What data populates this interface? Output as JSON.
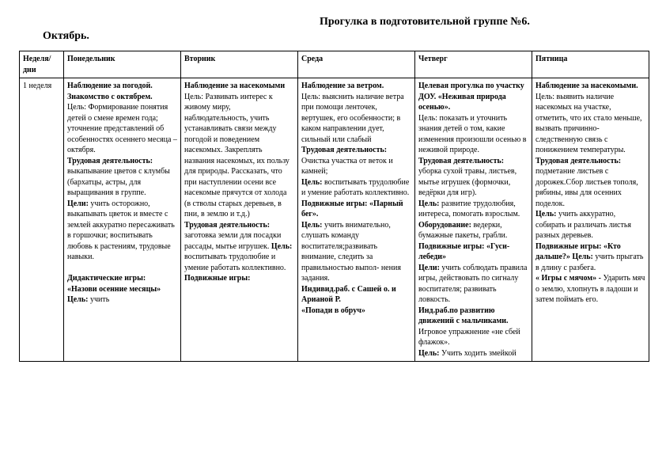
{
  "header": {
    "title": "Прогулка в подготовительной группе №6.",
    "month": "Октябрь."
  },
  "table": {
    "columns": [
      "Неделя/\nдни",
      "Понедельник",
      "Вторник",
      "Среда",
      "Четверг",
      "Пятница"
    ],
    "week_label": "1 неделя",
    "cells": {
      "mon": {
        "b1": "Наблюдение за погодой.  Знакомство с октябрем.",
        "p1": "Цель: Формирование понятия детей о смене времен года; уточнение представлений об особенностях осеннего месяца – октября.",
        "b2": "Трудовая деятельность:",
        "p2": "выкапывание цветов с клумбы (бархатцы, астры, для выращивания в группе.",
        "b3": "Цели:",
        "p3": " учить осторожно, выкапывать цветок и вместе с землей аккуратно пересаживать в горшочки;  воспитывать любовь к растениям, трудовые навыки.",
        "b4": "Дидактические игры: «Назови осенние месяцы» Цель: ",
        "p4": " учить"
      },
      "tue": {
        "b1": " Наблюдение за насекомыми",
        "p1": "Цель: Развивать интерес к живому миру, наблюдательность, учить устанавливать связи между погодой и поведением насекомых. Закреплять названия насекомых, их пользу для природы. Рассказать, что при наступлении осени все насекомые прячутся от холода (в стволы старых деревьев, в пни, в землю и т.д.)",
        "b2": "Трудовая деятельность: ",
        "p2": "заготовка земли для посадки рассады, мытье игрушек. ",
        "b3": "Цель: ",
        "p3": "воспитывать трудолюбие и умение работать коллективно.",
        "b4": "Подвижные игры:",
        "p4": ""
      },
      "wed": {
        "b1": "Наблюдение за ветром.",
        "p1": "Цель: выяснить наличие ветра при помощи ленточек, вертушек, его особенности; в каком направлении дует, сильный или слабый",
        "b2": "Трудовая деятельность:",
        "p2": "Очистка участка от веток и камней;",
        "b3": "Цель:",
        "p3": " воспитывать трудолюбие и умение работать коллективно.",
        "b4": "Подвижные игры: «Парный бег».",
        "p4": "",
        "b5": "Цель:",
        "p5": " учить внимательно, слушать команду воспитателя;развивать внимание, следить за правильностью выпол- нения задания.",
        "b6": "Индивид.раб. с Сашей о. и Арианой Р.",
        "p6": "",
        "b7": "«Попади в обруч»",
        "p7": ""
      },
      "thu": {
        "b1": "Целевая прогулка по участку ДОУ. «Неживая природа осенью».",
        "p1": "Цель: показать и уточнить знания детей о том, какие изменения произошли осенью в неживой природе.",
        "b2": "Трудовая деятельность:",
        "p2": " уборка сухой травы, листьев, мытье игрушек (формочки, ведёрки для игр).",
        "b3": "Цель:",
        "p3": " развитие трудолюбия, интереса, помогать взрослым.",
        "b4": " Оборудование:",
        "p4": " ведерки, бумажные пакеты, грабли.",
        "b5": "Подвижные игры: «Гуси- лебеди»",
        "p5": "",
        "b6": "Цели:",
        "p6": "  учить соблюдать правила игры, действовать по сигналу воспитателя;  развивать ловкость.",
        "b7": "Инд.раб.по развитию движений с мальчиками.",
        "p7": "Игровое упражнение «не сбей флажок».",
        "b8": "Цель:",
        "p8": " Учить ходить змейкой"
      },
      "fri": {
        "b1": "Наблюдение за насекомыми.",
        "p1": "Цель: выявить наличие насекомых на участке, отметить, что их стало меньше, вызвать причинно-следственную связь с понижением температуры.",
        "b2": "Трудовая деятельность:",
        "p2": " подметание листьев с дорожек.Сбор листьев тополя, рябины, ивы для осенних поделок.",
        "b3": "Цель:",
        "p3": "учить аккуратно, собирать и различать листья разных деревьев.",
        "b4": "Подвижные игры: «Кто дальше?» Цель: ",
        "p4": "учить прыгать в длину с разбега.",
        "b5": " « Игры с мячом» - ",
        "p5": "Ударить мяч о землю, хлопнуть в ладоши и затем  поймать его."
      }
    }
  }
}
